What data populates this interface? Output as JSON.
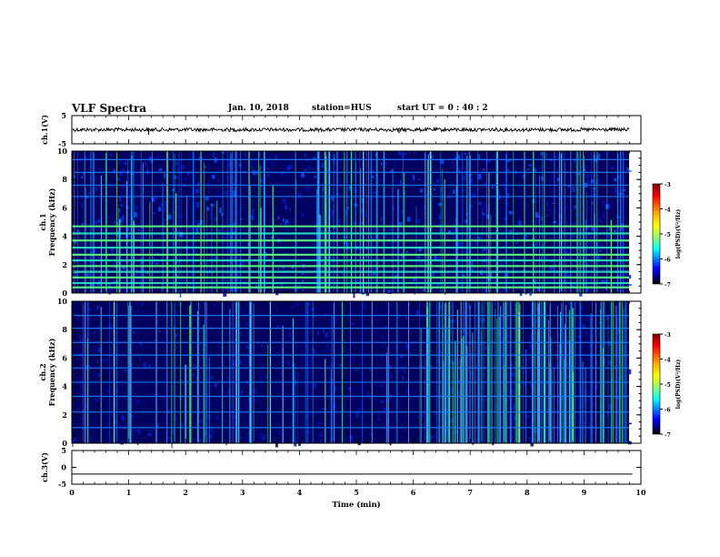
{
  "header": {
    "title": "VLF Spectra",
    "date": "Jan. 10, 2018",
    "station": "station=HUS",
    "start": "start  UT =   0 : 40 : 2"
  },
  "colors": {
    "spectrogram_background": "#000060",
    "trace": "#000000",
    "colormap": [
      "#7f0000",
      "#ff0000",
      "#ffb000",
      "#ffff00",
      "#80ff80",
      "#00ffff",
      "#0080ff",
      "#0000ff",
      "#000080",
      "#000000"
    ]
  },
  "chart_data": [
    {
      "type": "line",
      "panel": "ch1-waveform",
      "ylabel": "ch.1(V)",
      "ylim": [
        -5,
        5
      ],
      "yticks": [
        "5",
        "-5"
      ],
      "xlim": [
        0,
        10
      ],
      "x": [
        0,
        1,
        2,
        3,
        4,
        5,
        6,
        7,
        8,
        9,
        9.85
      ],
      "y": [
        0,
        0,
        0,
        0,
        0,
        0,
        0,
        0,
        0,
        0,
        0
      ],
      "spikes": [
        {
          "x": 1.35,
          "y": -1.8
        },
        {
          "x": 5.75,
          "y": -1.2
        }
      ]
    },
    {
      "type": "heatmap",
      "panel": "ch1-spectrogram",
      "ylabel": "ch.1  Frequency  (kHz)",
      "ylim": [
        0,
        10
      ],
      "yticks": [
        "0",
        "2",
        "4",
        "6",
        "8",
        "10"
      ],
      "xlim": [
        0,
        10
      ],
      "x_extent": [
        0,
        9.85
      ],
      "horizontal_lines_khz": [
        0.4,
        0.7,
        1.1,
        1.5,
        1.9,
        2.3,
        2.7,
        3.2,
        3.7,
        4.2,
        4.7,
        6.8,
        7.6,
        8.5,
        9.4
      ],
      "colorbar": {
        "label": "log(PSD)(V²/Hz)",
        "range": [
          -7,
          -3
        ],
        "ticks": [
          "-3",
          "-4",
          "-5",
          "-6",
          "-7"
        ]
      }
    },
    {
      "type": "heatmap",
      "panel": "ch2-spectrogram",
      "ylabel": "ch.2  Frequency  (kHz)",
      "ylim": [
        0,
        10
      ],
      "yticks": [
        "0",
        "2",
        "4",
        "6",
        "8",
        "10"
      ],
      "xlim": [
        0,
        10
      ],
      "x_extent": [
        0,
        9.85
      ],
      "horizontal_lines_khz": [
        1.1,
        2.2,
        3.3,
        4.3,
        5.3,
        6.2,
        7.1,
        8.1,
        9.0
      ],
      "colorbar": {
        "label": "log(PSD)(V²/Hz)",
        "range": [
          -7,
          -3
        ],
        "ticks": [
          "-3",
          "-4",
          "-5",
          "-6",
          "-7"
        ]
      }
    },
    {
      "type": "line",
      "panel": "ch3-waveform",
      "ylabel": "ch.3(V)",
      "ylim": [
        -5,
        5
      ],
      "yticks": [
        "5",
        "0",
        "-5"
      ],
      "xlim": [
        0,
        10
      ],
      "x": [
        0,
        9.85
      ],
      "y": [
        -2,
        -2
      ]
    }
  ],
  "xaxis": {
    "label": "Time  (min)",
    "ticks": [
      "0",
      "1",
      "2",
      "3",
      "4",
      "5",
      "6",
      "7",
      "8",
      "9",
      "10"
    ]
  }
}
